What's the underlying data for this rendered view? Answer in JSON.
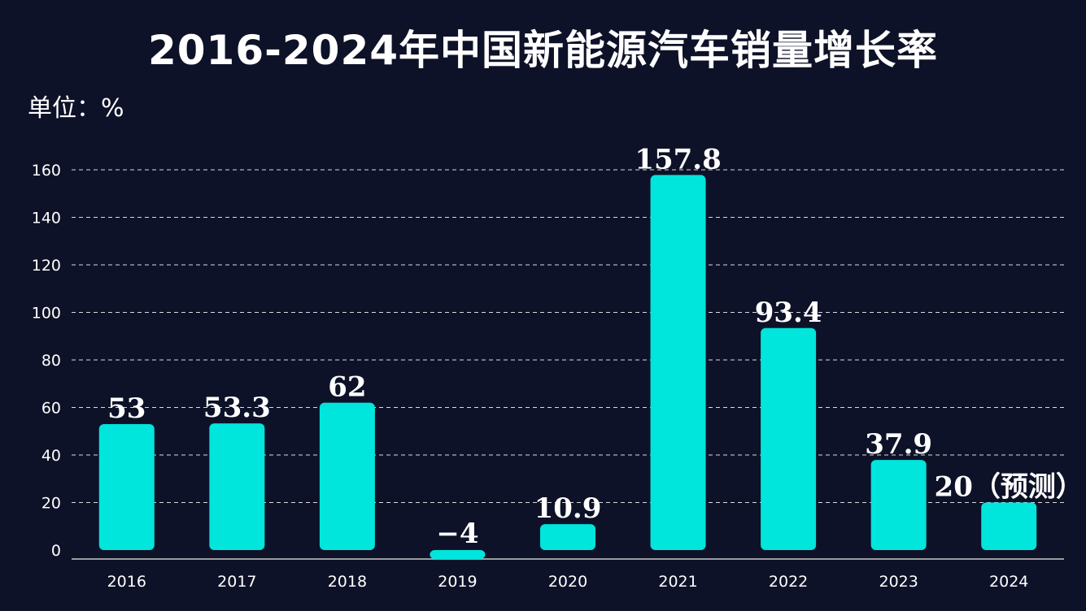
{
  "chart_data": {
    "type": "bar",
    "title": "2016-2024年中国新能源汽车销量增长率",
    "unit_label": "单位：%",
    "categories": [
      "2016",
      "2017",
      "2018",
      "2019",
      "2020",
      "2021",
      "2022",
      "2023",
      "2024"
    ],
    "values": [
      53,
      53.3,
      62,
      -4,
      10.9,
      157.8,
      93.4,
      37.9,
      20
    ],
    "value_labels": [
      "53",
      "53.3",
      "62",
      "−4",
      "10.9",
      "157.8",
      "93.4",
      "37.9",
      "20（预测）"
    ],
    "y_ticks": [
      "0",
      "20",
      "40",
      "60",
      "80",
      "100",
      "120",
      "140",
      "160"
    ],
    "ylim": [
      0,
      160
    ],
    "grid": true,
    "colors": {
      "bar": "#00e5dc",
      "grid": "#ffffff",
      "axis": "#c9c9c9",
      "background": "#0e1228"
    }
  }
}
